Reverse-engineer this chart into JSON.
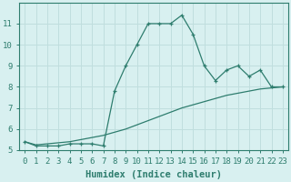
{
  "xlabel": "Humidex (Indice chaleur)",
  "x": [
    0,
    1,
    2,
    3,
    4,
    5,
    6,
    7,
    8,
    9,
    10,
    11,
    12,
    13,
    14,
    15,
    16,
    17,
    18,
    19,
    20,
    21,
    22,
    23
  ],
  "line_upper": [
    5.4,
    5.2,
    5.2,
    5.2,
    5.3,
    5.3,
    5.3,
    5.2,
    7.8,
    9.0,
    10.0,
    11.0,
    11.0,
    11.0,
    11.4,
    10.5,
    9.0,
    8.3,
    8.8,
    9.0,
    8.5,
    8.8,
    8.0,
    8.0
  ],
  "line_lower": [
    5.4,
    5.25,
    5.3,
    5.35,
    5.4,
    5.5,
    5.6,
    5.7,
    5.85,
    6.0,
    6.2,
    6.4,
    6.6,
    6.8,
    7.0,
    7.15,
    7.3,
    7.45,
    7.6,
    7.7,
    7.8,
    7.9,
    7.95,
    8.0
  ],
  "color": "#2e7d6e",
  "bg_color": "#d8f0f0",
  "grid_color": "#c0dede",
  "ylim": [
    5,
    12
  ],
  "xlim": [
    -0.5,
    23.5
  ],
  "yticks": [
    5,
    6,
    7,
    8,
    9,
    10,
    11
  ],
  "tick_fontsize": 6.5,
  "label_fontsize": 7.5
}
